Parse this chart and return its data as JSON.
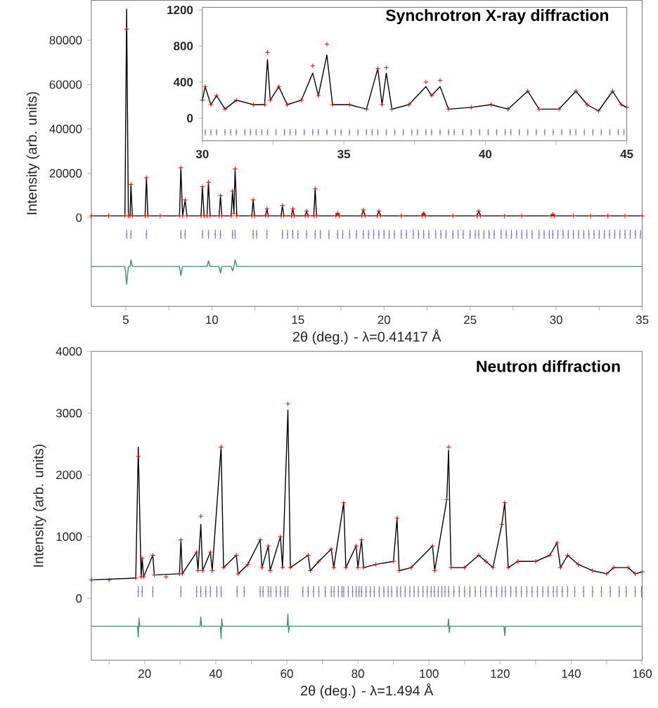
{
  "chart_data": [
    {
      "type": "line",
      "xlabel": "2θ (deg.) - λ=0.41417 Å",
      "ylabel": "Intensity (arb. units)",
      "xlim": [
        3,
        35
      ],
      "ylim": [
        -40000,
        98000
      ],
      "xticks": [
        5,
        {
          "value": 7.5,
          "label": null
        },
        10,
        {
          "value": 12.5,
          "label": null
        },
        15,
        {
          "value": 17.5,
          "label": null
        },
        20,
        {
          "value": 22.5,
          "label": null
        },
        25,
        {
          "value": 27.5,
          "label": null
        },
        30,
        {
          "value": 32.5,
          "label": null
        },
        35
      ],
      "yticks": [
        0,
        20000,
        40000,
        60000,
        80000
      ],
      "series": [
        {
          "type": "scatter",
          "marker": "cross",
          "color": "#ff0000",
          "x": [
            3,
            4,
            4.95,
            5.05,
            5.15,
            5.25,
            5.3,
            5.38,
            6.12,
            6.2,
            6.28,
            7,
            8.12,
            8.2,
            8.3,
            8.45,
            8.55,
            9.37,
            9.45,
            9.55,
            9.72,
            9.8,
            9.9,
            10.42,
            10.5,
            10.58,
            11.12,
            11.2,
            11.28,
            11.35,
            11.45,
            12.32,
            12.4,
            12.48,
            13.12,
            13.2,
            13.28,
            14.02,
            14.1,
            14.18,
            14.62,
            14.7,
            14.78,
            15.42,
            15.5,
            15.58,
            15.92,
            16.0,
            16.08,
            17.2,
            17.3,
            17.4,
            18.7,
            18.8,
            18.9,
            19.6,
            19.7,
            19.8,
            21,
            22.2,
            22.3,
            22.4,
            24,
            25.4,
            25.5,
            25.6,
            27,
            28,
            29.7,
            29.8,
            29.9,
            31,
            32,
            33,
            34,
            35
          ],
          "values": [
            800,
            800,
            800,
            85000,
            800,
            800,
            15000,
            800,
            800,
            18000,
            800,
            800,
            800,
            22500,
            800,
            8000,
            800,
            800,
            14000,
            800,
            800,
            16000,
            800,
            800,
            10000,
            800,
            800,
            12000,
            2000,
            22000,
            800,
            800,
            8000,
            800,
            800,
            4000,
            800,
            800,
            5500,
            800,
            800,
            4000,
            800,
            800,
            3000,
            800,
            800,
            13000,
            800,
            800,
            2000,
            800,
            800,
            3500,
            800,
            800,
            3000,
            800,
            800,
            800,
            1800,
            800,
            800,
            800,
            3000,
            800,
            800,
            800,
            800,
            1500,
            800,
            800,
            800,
            800,
            800,
            800
          ]
        },
        {
          "color": "#000000",
          "x": [
            3,
            4.95,
            5.05,
            5.15,
            5.25,
            5.3,
            5.38,
            6.12,
            6.2,
            6.28,
            8.12,
            8.2,
            8.3,
            8.45,
            8.55,
            9.37,
            9.45,
            9.55,
            9.72,
            9.8,
            9.9,
            10.42,
            10.5,
            10.58,
            11.12,
            11.2,
            11.28,
            11.35,
            11.45,
            12.32,
            12.4,
            12.48,
            13.12,
            13.2,
            13.28,
            14.02,
            14.1,
            14.18,
            14.62,
            14.7,
            14.78,
            15.42,
            15.5,
            15.58,
            15.92,
            16.0,
            16.08,
            17.2,
            17.3,
            17.4,
            18.7,
            18.8,
            18.9,
            19.6,
            19.7,
            19.8,
            22.2,
            22.3,
            22.4,
            25.4,
            25.5,
            25.6,
            29.7,
            29.8,
            29.9,
            35
          ],
          "values": [
            800,
            800,
            94000,
            800,
            800,
            15000,
            800,
            800,
            18000,
            800,
            800,
            22500,
            800,
            8000,
            800,
            800,
            14000,
            800,
            800,
            16000,
            800,
            800,
            10000,
            800,
            800,
            12000,
            2000,
            22000,
            800,
            800,
            8000,
            800,
            800,
            4000,
            800,
            800,
            5500,
            800,
            800,
            4000,
            800,
            800,
            3000,
            800,
            800,
            13000,
            800,
            800,
            2000,
            800,
            800,
            3500,
            800,
            800,
            3000,
            800,
            800,
            2200,
            800,
            800,
            3000,
            800,
            800,
            1500,
            800,
            800
          ]
        },
        {
          "type": "scatter",
          "marker": "circle",
          "color": "#7070e8",
          "errors": [
            2000,
            2000,
            2000,
            2000,
            2000,
            2000,
            2000,
            2000,
            2000,
            2000,
            2000,
            2000,
            2000,
            2000,
            2000,
            2000,
            2000,
            2000,
            2000,
            2000,
            2000,
            2000,
            2000,
            2000,
            2000,
            2000,
            2000,
            2000,
            2000,
            2000,
            2000,
            2000,
            2000,
            2000,
            2000,
            2000,
            2000,
            2000,
            2000,
            2000,
            2000,
            2000,
            2000,
            2000,
            2000,
            2000,
            2000,
            2000,
            2000,
            2000,
            2000,
            2000,
            2000,
            2000,
            2000,
            2000,
            2000,
            2000,
            2000,
            2000,
            2000,
            2000,
            2000,
            2000,
            2000,
            2000,
            2000,
            2000,
            2000,
            2000,
            2000,
            2000,
            2000,
            2000,
            2000,
            2000,
            2000,
            2000,
            2000
          ],
          "x": [
            5.05,
            5.3,
            6.2,
            8.2,
            8.45,
            9.45,
            9.8,
            10.2,
            10.5,
            11.2,
            11.35,
            12.4,
            12.6,
            13.2,
            14.1,
            14.4,
            14.7,
            15.0,
            15.5,
            16.0,
            16.3,
            16.8,
            17.3,
            17.6,
            18.0,
            18.4,
            18.8,
            19.1,
            19.4,
            19.7,
            20.0,
            20.3,
            20.6,
            21.0,
            21.3,
            21.7,
            22.0,
            22.3,
            22.6,
            23.0,
            23.3,
            23.6,
            24.0,
            24.3,
            24.6,
            25.0,
            25.3,
            25.5,
            25.8,
            26.1,
            26.4,
            26.8,
            27.1,
            27.4,
            27.7,
            28.0,
            28.3,
            28.6,
            29.0,
            29.3,
            29.6,
            29.8,
            30.1,
            30.4,
            30.7,
            31.0,
            31.3,
            31.6,
            31.9,
            32.2,
            32.5,
            32.8,
            33.1,
            33.4,
            33.7,
            34.0,
            34.3,
            34.6,
            34.9
          ],
          "values": [
            -7500,
            -7500,
            -7500,
            -7500,
            -7500,
            -7500,
            -7500,
            -7500,
            -7500,
            -7500,
            -7500,
            -7500,
            -7500,
            -7500,
            -7500,
            -7500,
            -7500,
            -7500,
            -7500,
            -7500,
            -7500,
            -7500,
            -7500,
            -7500,
            -7500,
            -7500,
            -7500,
            -7500,
            -7500,
            -7500,
            -7500,
            -7500,
            -7500,
            -7500,
            -7500,
            -7500,
            -7500,
            -7500,
            -7500,
            -7500,
            -7500,
            -7500,
            -7500,
            -7500,
            -7500,
            -7500,
            -7500,
            -7500,
            -7500,
            -7500,
            -7500,
            -7500,
            -7500,
            -7500,
            -7500,
            -7500,
            -7500,
            -7500,
            -7500,
            -7500,
            -7500,
            -7500,
            -7500,
            -7500,
            -7500,
            -7500,
            -7500,
            -7500,
            -7500,
            -7500,
            -7500,
            -7500,
            -7500,
            -7500,
            -7500,
            -7500,
            -7500,
            -7500,
            -7500
          ]
        },
        {
          "color": "#339966",
          "x": [
            3,
            4.95,
            5.05,
            5.15,
            5.25,
            5.3,
            5.38,
            8.12,
            8.2,
            8.3,
            9.72,
            9.8,
            9.9,
            10.42,
            10.5,
            10.58,
            11.12,
            11.2,
            11.28,
            11.35,
            11.45,
            35
          ],
          "values": [
            -22000,
            -22000,
            -30000,
            -22000,
            -22000,
            -19000,
            -22000,
            -22000,
            -26000,
            -22000,
            -22000,
            -19500,
            -22000,
            -22000,
            -25000,
            -22000,
            -22000,
            -24000,
            -22000,
            -19000,
            -22000,
            -22000
          ]
        }
      ]
    },
    {
      "type": "line",
      "title": "Synchrotron X-ray diffraction",
      "xlim": [
        30,
        45
      ],
      "ylim": [
        -250,
        1230
      ],
      "xticks": [
        30,
        {
          "value": 32.5,
          "label": null
        },
        35,
        {
          "value": 37.5,
          "label": null
        },
        40,
        {
          "value": 42.5,
          "label": null
        },
        45
      ],
      "yticks": [
        0,
        400,
        800,
        1200
      ],
      "series": [
        {
          "type": "scatter",
          "marker": "cross",
          "color": "#ff0000",
          "x": [
            30,
            30.1,
            30.3,
            30.5,
            30.8,
            31.2,
            31.8,
            32.2,
            32.3,
            32.4,
            32.7,
            33.0,
            33.5,
            33.9,
            34.1,
            34.4,
            34.6,
            35.2,
            35.8,
            36.2,
            36.35,
            36.5,
            36.7,
            37.3,
            37.9,
            38.1,
            38.4,
            38.7,
            39.5,
            40.2,
            40.8,
            41.5,
            41.9,
            42.6,
            43.2,
            43.6,
            44.0,
            44.5,
            44.8,
            45
          ],
          "values": [
            200,
            350,
            150,
            250,
            100,
            200,
            150,
            150,
            730,
            200,
            350,
            150,
            200,
            580,
            250,
            820,
            150,
            150,
            100,
            550,
            150,
            560,
            100,
            150,
            400,
            250,
            420,
            100,
            120,
            150,
            100,
            300,
            100,
            100,
            300,
            150,
            80,
            300,
            150,
            120
          ]
        },
        {
          "color": "#000000",
          "x": [
            30,
            30.1,
            30.3,
            30.5,
            30.8,
            31.2,
            31.8,
            32.2,
            32.3,
            32.4,
            32.7,
            33.0,
            33.5,
            33.9,
            34.1,
            34.4,
            34.6,
            35.2,
            35.8,
            36.2,
            36.35,
            36.5,
            36.7,
            37.3,
            37.9,
            38.1,
            38.4,
            38.7,
            39.5,
            40.2,
            40.8,
            41.5,
            41.9,
            42.6,
            43.2,
            43.6,
            44.0,
            44.5,
            44.8,
            45
          ],
          "values": [
            200,
            350,
            150,
            250,
            100,
            200,
            150,
            150,
            650,
            200,
            350,
            150,
            200,
            500,
            250,
            700,
            150,
            150,
            100,
            550,
            150,
            500,
            100,
            150,
            350,
            250,
            350,
            100,
            120,
            150,
            100,
            300,
            100,
            100,
            300,
            150,
            80,
            300,
            150,
            120
          ]
        },
        {
          "type": "scatter",
          "marker": "circle",
          "color": "#7070e8",
          "errors": [
            35,
            35,
            35,
            35,
            35,
            35,
            35,
            35,
            35,
            35,
            35,
            35,
            35,
            35,
            35,
            35,
            35,
            35,
            35,
            35,
            35,
            35,
            35,
            35,
            35,
            35,
            35,
            35,
            35,
            35,
            35,
            35,
            35,
            35,
            35,
            35,
            35,
            35,
            35,
            35,
            35,
            35,
            35,
            35,
            35,
            35,
            35,
            35,
            35,
            35,
            35,
            35,
            35,
            35,
            35,
            35,
            35
          ],
          "x": [
            30.1,
            30.3,
            30.5,
            30.8,
            31.0,
            31.2,
            31.5,
            31.7,
            31.9,
            32.1,
            32.3,
            32.6,
            32.9,
            33.1,
            33.3,
            33.6,
            33.9,
            34.1,
            34.4,
            34.7,
            34.9,
            35.2,
            35.5,
            35.8,
            36.0,
            36.2,
            36.5,
            36.8,
            37.1,
            37.4,
            37.6,
            37.9,
            38.1,
            38.4,
            38.7,
            38.9,
            39.2,
            39.5,
            39.8,
            40.1,
            40.4,
            40.7,
            40.9,
            41.2,
            41.5,
            41.8,
            42.1,
            42.4,
            42.7,
            43.0,
            43.2,
            43.5,
            43.8,
            44.1,
            44.4,
            44.7,
            44.9
          ],
          "values": [
            -155,
            -155,
            -155,
            -155,
            -155,
            -155,
            -155,
            -155,
            -155,
            -155,
            -155,
            -155,
            -155,
            -155,
            -155,
            -155,
            -155,
            -155,
            -155,
            -155,
            -155,
            -155,
            -155,
            -155,
            -155,
            -155,
            -155,
            -155,
            -155,
            -155,
            -155,
            -155,
            -155,
            -155,
            -155,
            -155,
            -155,
            -155,
            -155,
            -155,
            -155,
            -155,
            -155,
            -155,
            -155,
            -155,
            -155,
            -155,
            -155,
            -155,
            -155,
            -155,
            -155,
            -155,
            -155,
            -155,
            -155
          ]
        }
      ]
    },
    {
      "type": "line",
      "title": "Neutron diffraction",
      "xlabel": "2θ (deg.) - λ=1.494 Å",
      "ylabel": "Intensity (arb. units)",
      "xlim": [
        5,
        160
      ],
      "ylim": [
        -1000,
        4000
      ],
      "xticks": [
        {
          "value": 10,
          "label": null
        },
        20,
        {
          "value": 30,
          "label": null
        },
        40,
        {
          "value": 50,
          "label": null
        },
        60,
        {
          "value": 70,
          "label": null
        },
        80,
        {
          "value": 90,
          "label": null
        },
        100,
        {
          "value": 110,
          "label": null
        },
        120,
        {
          "value": 130,
          "label": null
        },
        140,
        {
          "value": 150,
          "label": null
        },
        160
      ],
      "yticks": [
        0,
        1000,
        2000,
        3000,
        4000
      ],
      "series": [
        {
          "type": "scatter",
          "marker": "cross",
          "color": "#ff0000",
          "x": [
            5,
            10,
            17.5,
            18.2,
            19,
            19.3,
            19.7,
            22.3,
            22.7,
            26,
            29.8,
            30.2,
            30.6,
            34.6,
            35.0,
            35.8,
            36.3,
            38.5,
            39,
            41.5,
            42.2,
            45.8,
            46.3,
            49,
            52.5,
            53,
            54.8,
            55.3,
            58.2,
            58.8,
            60.3,
            61,
            66,
            66.6,
            69,
            72.5,
            73.2,
            76,
            76.6,
            79.5,
            80,
            81,
            81.6,
            85,
            90,
            91,
            91.6,
            95,
            101,
            101.6,
            105,
            105.5,
            106.2,
            110,
            114,
            116,
            118,
            120.5,
            121.3,
            122.3,
            125,
            130,
            134,
            136,
            137,
            139,
            142,
            146,
            150,
            152,
            156,
            158,
            160
          ],
          "values": [
            300,
            300,
            330,
            2300,
            350,
            650,
            350,
            700,
            380,
            350,
            400,
            950,
            400,
            750,
            450,
            1330,
            450,
            750,
            450,
            2450,
            500,
            700,
            400,
            550,
            950,
            500,
            850,
            450,
            1000,
            500,
            3150,
            500,
            700,
            450,
            600,
            800,
            500,
            1550,
            500,
            850,
            500,
            950,
            500,
            550,
            600,
            1300,
            450,
            500,
            850,
            450,
            1600,
            2450,
            500,
            500,
            700,
            600,
            500,
            1200,
            1550,
            500,
            600,
            600,
            700,
            900,
            500,
            700,
            550,
            450,
            400,
            500,
            500,
            400,
            430
          ]
        },
        {
          "color": "#000000",
          "x": [
            5,
            17.5,
            18.2,
            19,
            19.3,
            19.7,
            22.3,
            22.7,
            29.8,
            30.2,
            30.6,
            34.6,
            35.0,
            35.8,
            36.3,
            38.5,
            39,
            41.5,
            42.2,
            45.8,
            46.3,
            49,
            52.5,
            53,
            54.8,
            55.3,
            58.2,
            58.8,
            60.3,
            61,
            66,
            66.6,
            69,
            72.5,
            73.2,
            76,
            76.6,
            79.5,
            80,
            81,
            81.6,
            85,
            90,
            91,
            91.6,
            95,
            101,
            101.6,
            105,
            105.5,
            106.2,
            110,
            114,
            116,
            118,
            120.5,
            121.3,
            122.3,
            125,
            130,
            134,
            136,
            137,
            139,
            142,
            146,
            150,
            152,
            156,
            158,
            160
          ],
          "values": [
            300,
            330,
            2450,
            350,
            650,
            350,
            700,
            380,
            400,
            950,
            400,
            750,
            450,
            1200,
            450,
            750,
            450,
            2450,
            500,
            700,
            400,
            550,
            950,
            500,
            850,
            450,
            1000,
            500,
            3050,
            500,
            700,
            450,
            600,
            800,
            500,
            1550,
            500,
            850,
            500,
            950,
            500,
            550,
            600,
            1300,
            450,
            500,
            850,
            450,
            1600,
            2400,
            500,
            500,
            700,
            600,
            500,
            1200,
            1550,
            500,
            600,
            600,
            700,
            900,
            500,
            700,
            550,
            450,
            400,
            500,
            500,
            400,
            430
          ]
        },
        {
          "type": "scatter",
          "marker": "circle",
          "color": "#7070e8",
          "errors": [
            90,
            90,
            90,
            90,
            90,
            90,
            90,
            90,
            90,
            90,
            90,
            90,
            90,
            90,
            90,
            90,
            90,
            90,
            90,
            90,
            90,
            90,
            90,
            90,
            90,
            90,
            90,
            90,
            90,
            90,
            90,
            90,
            90,
            90,
            90,
            90,
            90,
            90,
            90,
            90,
            90,
            90,
            90,
            90,
            90,
            90,
            90,
            90,
            90,
            90,
            90,
            90,
            90,
            90,
            90,
            90,
            90,
            90,
            90,
            90,
            90,
            90,
            90,
            90,
            90,
            90,
            90,
            90,
            90,
            90,
            90,
            90,
            90,
            90,
            90,
            90,
            90,
            90,
            90,
            90,
            90,
            90,
            90,
            90,
            90,
            90,
            90,
            90
          ],
          "x": [
            18.2,
            19.3,
            22.3,
            30.2,
            34.6,
            35.8,
            37.2,
            38.5,
            40.3,
            41.5,
            46,
            48,
            52.5,
            53.3,
            54.8,
            55.5,
            57,
            58.2,
            59.5,
            60.3,
            64.5,
            66,
            67.5,
            69,
            70.8,
            72.5,
            73.3,
            74.5,
            75.5,
            76,
            77.3,
            78.5,
            79.5,
            80.3,
            81,
            82.3,
            83.5,
            84.6,
            86,
            87.3,
            88.5,
            89.5,
            91,
            92,
            93.3,
            94.6,
            95.8,
            97,
            98.3,
            99.5,
            100.6,
            101.5,
            102.6,
            103.6,
            104.5,
            105.5,
            107,
            108.5,
            110,
            111.5,
            113,
            114.5,
            116,
            117.5,
            119,
            120.5,
            121.5,
            123,
            124.5,
            126,
            127.5,
            129,
            130.5,
            132,
            133.5,
            135,
            136,
            137.5,
            139,
            141,
            143.5,
            146,
            148.5,
            151,
            153.5,
            155.5,
            158,
            159.8
          ],
          "values": [
            110,
            110,
            110,
            110,
            110,
            110,
            110,
            110,
            110,
            110,
            110,
            110,
            110,
            110,
            110,
            110,
            110,
            110,
            110,
            110,
            110,
            110,
            110,
            110,
            110,
            110,
            110,
            110,
            110,
            110,
            110,
            110,
            110,
            110,
            110,
            110,
            110,
            110,
            110,
            110,
            110,
            110,
            110,
            110,
            110,
            110,
            110,
            110,
            110,
            110,
            110,
            110,
            110,
            110,
            110,
            110,
            110,
            110,
            110,
            110,
            110,
            110,
            110,
            110,
            110,
            110,
            110,
            110,
            110,
            110,
            110,
            110,
            110,
            110,
            110,
            110,
            110,
            110,
            110,
            110,
            110,
            110,
            110,
            110,
            110,
            110,
            110,
            110
          ]
        },
        {
          "color": "#339966",
          "x": [
            5,
            18,
            18.2,
            18.4,
            18.6,
            35.6,
            35.8,
            36,
            41.3,
            41.5,
            41.7,
            41.9,
            60.1,
            60.3,
            60.5,
            60.7,
            105.3,
            105.5,
            105.7,
            105.9,
            121.1,
            121.3,
            121.5,
            160
          ],
          "values": [
            -450,
            -450,
            -620,
            -320,
            -450,
            -450,
            -300,
            -450,
            -450,
            -650,
            -330,
            -450,
            -450,
            -250,
            -550,
            -450,
            -450,
            -330,
            -550,
            -450,
            -450,
            -600,
            -450,
            -450
          ]
        }
      ]
    }
  ]
}
